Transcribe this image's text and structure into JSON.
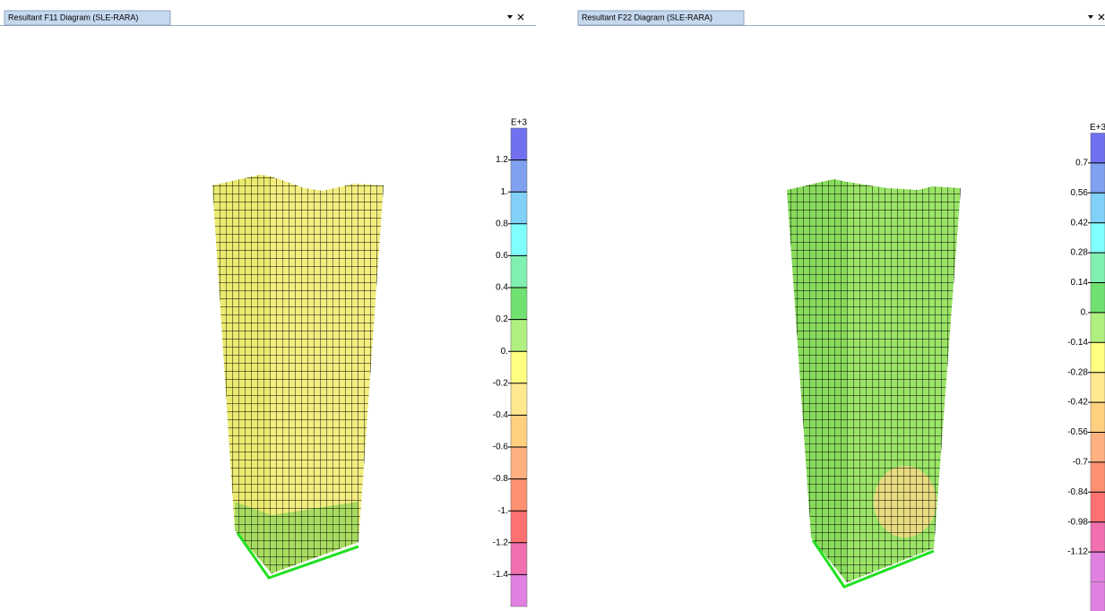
{
  "panels": [
    {
      "title": "Resultant F11 Diagram (SLE-RARA)",
      "legend": {
        "exponent": "E+3",
        "labels": [
          "1.2",
          "1.",
          "0.8",
          "0.6",
          "0.4",
          "0.2",
          "0.",
          "-0.2",
          "-0.4",
          "-0.6",
          "-0.8",
          "-1.",
          "-1.2",
          "-1.4"
        ]
      }
    },
    {
      "title": "Resultant F22 Diagram (SLE-RARA)",
      "legend": {
        "exponent": "E+3",
        "labels": [
          "0.7",
          "0.56",
          "0.42",
          "0.28",
          "0.14",
          "0.",
          "-0.14",
          "-0.28",
          "-0.42",
          "-0.56",
          "-0.7",
          "-0.84",
          "-0.98",
          "-1.12"
        ]
      }
    }
  ]
}
